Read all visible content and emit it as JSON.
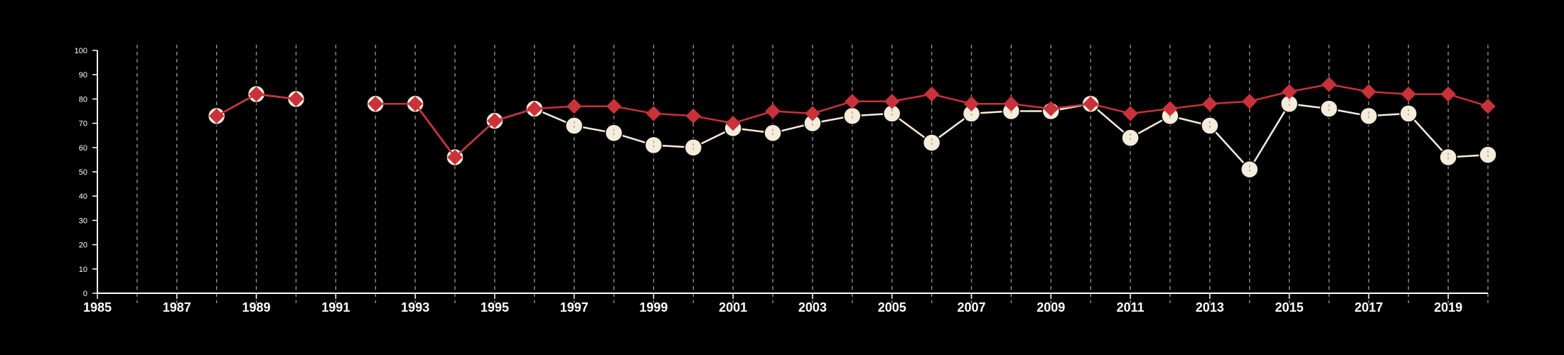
{
  "colors": {
    "background": "#000000",
    "axis": "#ffffff",
    "grid": "#9a9a9a",
    "series_red": "#c8323a",
    "series_cream": "#f6ecdc"
  },
  "chart_data": {
    "type": "line",
    "title": "",
    "xlabel": "",
    "ylabel": "",
    "xlim": [
      1985,
      2020
    ],
    "ylim": [
      0,
      100
    ],
    "x_ticks": [
      1985,
      1987,
      1989,
      1991,
      1993,
      1995,
      1997,
      1999,
      2001,
      2003,
      2005,
      2007,
      2009,
      2011,
      2013,
      2015,
      2017,
      2019
    ],
    "y_ticks": [
      0,
      10,
      20,
      30,
      40,
      50,
      60,
      70,
      80,
      90,
      100
    ],
    "grid": "vertical dashed lines at every year",
    "legend": "none",
    "series": [
      {
        "color": "#c8323a",
        "marker": "diamond",
        "points": [
          [
            1988,
            73
          ],
          [
            1989,
            82
          ],
          [
            1990,
            80
          ],
          [
            1992,
            78
          ],
          [
            1993,
            78
          ],
          [
            1994,
            56
          ],
          [
            1995,
            71
          ],
          [
            1996,
            76
          ],
          [
            1997,
            77
          ],
          [
            1998,
            77
          ],
          [
            1999,
            74
          ],
          [
            2000,
            73
          ],
          [
            2001,
            70
          ],
          [
            2002,
            75
          ],
          [
            2003,
            74
          ],
          [
            2004,
            79
          ],
          [
            2005,
            79
          ],
          [
            2006,
            82
          ],
          [
            2007,
            78
          ],
          [
            2008,
            78
          ],
          [
            2009,
            76
          ],
          [
            2010,
            78
          ],
          [
            2011,
            74
          ],
          [
            2012,
            76
          ],
          [
            2013,
            78
          ],
          [
            2014,
            79
          ],
          [
            2015,
            83
          ],
          [
            2016,
            86
          ],
          [
            2017,
            83
          ],
          [
            2018,
            82
          ],
          [
            2019,
            82
          ],
          [
            2020,
            77
          ]
        ]
      },
      {
        "color": "#f6ecdc",
        "marker": "circle",
        "points": [
          [
            1988,
            73
          ],
          [
            1989,
            82
          ],
          [
            1990,
            80
          ],
          [
            1992,
            78
          ],
          [
            1993,
            78
          ],
          [
            1994,
            56
          ],
          [
            1995,
            71
          ],
          [
            1996,
            76
          ],
          [
            1997,
            69
          ],
          [
            1998,
            66
          ],
          [
            1999,
            61
          ],
          [
            2000,
            60
          ],
          [
            2001,
            68
          ],
          [
            2002,
            66
          ],
          [
            2003,
            70
          ],
          [
            2004,
            73
          ],
          [
            2005,
            74
          ],
          [
            2006,
            62
          ],
          [
            2007,
            74
          ],
          [
            2008,
            75
          ],
          [
            2009,
            75
          ],
          [
            2010,
            78
          ],
          [
            2011,
            64
          ],
          [
            2012,
            73
          ],
          [
            2013,
            69
          ],
          [
            2014,
            51
          ],
          [
            2015,
            78
          ],
          [
            2016,
            76
          ],
          [
            2017,
            73
          ],
          [
            2018,
            74
          ],
          [
            2019,
            56
          ],
          [
            2020,
            57
          ]
        ]
      }
    ]
  }
}
